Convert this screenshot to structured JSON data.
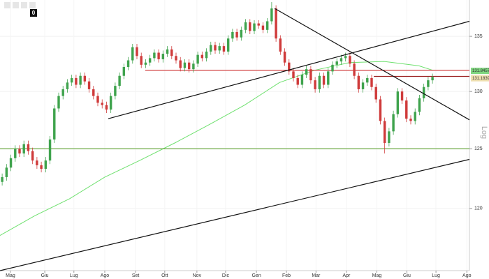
{
  "badge": "0",
  "chart_data": {
    "type": "candlestick",
    "open": [
      122.2,
      122.6,
      123.4,
      124.2,
      125.0,
      124.6,
      125.4,
      124.8,
      124.0,
      123.6,
      123.3,
      124.0,
      125.8,
      128.5,
      129.6,
      130.2,
      130.8,
      131.2,
      130.6,
      131.4,
      130.9,
      130.2,
      129.6,
      129.0,
      128.8,
      128.4,
      129.6,
      130.5,
      131.4,
      132.2,
      132.8,
      134.0,
      133.2,
      132.4,
      132.6,
      133.0,
      133.5,
      132.9,
      133.4,
      133.8,
      133.2,
      132.8,
      132.1,
      132.6,
      132.0,
      132.5,
      133.3,
      133.0,
      133.6,
      134.2,
      133.7,
      134.1,
      133.6,
      134.8,
      135.4,
      134.9,
      135.6,
      136.3,
      135.5,
      136.2,
      136.0,
      135.6,
      136.4,
      137.6,
      134.8,
      133.6,
      132.6,
      131.8,
      131.2,
      130.6,
      131.5,
      132.0,
      131.0,
      130.2,
      131.4,
      130.6,
      131.8,
      132.4,
      132.7,
      133.0,
      133.2,
      132.5,
      131.4,
      130.2,
      130.8,
      131.2,
      130.4,
      129.3,
      127.4,
      125.5,
      126.5,
      128.0,
      130.0,
      129.2,
      127.6,
      127.4,
      128.2,
      129.4,
      130.4,
      131.0
    ],
    "high": [
      122.9,
      123.7,
      124.5,
      125.3,
      125.3,
      125.7,
      125.7,
      125.1,
      124.3,
      123.9,
      124.3,
      126.1,
      128.8,
      129.9,
      130.5,
      131.1,
      131.5,
      131.5,
      131.7,
      131.7,
      131.2,
      130.5,
      129.9,
      129.3,
      129.1,
      129.9,
      130.8,
      131.7,
      132.5,
      133.1,
      134.3,
      134.3,
      133.5,
      132.9,
      133.3,
      133.8,
      133.8,
      133.7,
      134.1,
      134.1,
      133.5,
      133.1,
      132.9,
      132.9,
      132.8,
      133.6,
      133.6,
      133.9,
      134.5,
      134.5,
      134.4,
      134.4,
      135.1,
      135.7,
      135.7,
      135.9,
      136.6,
      136.6,
      136.5,
      136.5,
      136.3,
      136.7,
      138.2,
      137.9,
      135.1,
      133.9,
      132.9,
      132.1,
      131.5,
      131.8,
      132.3,
      132.3,
      131.3,
      131.7,
      131.7,
      132.1,
      132.7,
      133.0,
      133.3,
      133.5,
      133.5,
      132.8,
      131.7,
      131.1,
      131.5,
      131.5,
      130.7,
      129.6,
      127.7,
      126.8,
      128.3,
      130.3,
      130.3,
      129.5,
      127.9,
      128.5,
      129.7,
      130.7,
      131.3,
      131.6
    ],
    "low": [
      121.9,
      122.3,
      123.1,
      123.9,
      124.3,
      124.3,
      124.5,
      123.7,
      123.3,
      123.0,
      123.0,
      123.7,
      125.5,
      128.2,
      129.3,
      129.9,
      130.5,
      130.3,
      130.3,
      130.6,
      129.9,
      129.3,
      128.7,
      128.5,
      128.1,
      128.1,
      129.3,
      130.2,
      131.1,
      131.9,
      132.5,
      132.9,
      132.1,
      132.1,
      132.3,
      132.7,
      132.6,
      132.6,
      133.1,
      132.9,
      132.5,
      131.8,
      131.8,
      131.7,
      131.7,
      132.2,
      132.7,
      132.7,
      133.3,
      133.4,
      133.4,
      133.3,
      133.3,
      134.5,
      134.6,
      134.6,
      135.3,
      135.2,
      135.2,
      135.7,
      135.3,
      135.3,
      136.1,
      134.5,
      133.3,
      132.3,
      131.5,
      130.9,
      130.3,
      130.3,
      131.2,
      130.7,
      129.9,
      129.9,
      130.3,
      130.3,
      131.5,
      132.1,
      132.4,
      132.7,
      132.2,
      131.1,
      129.9,
      129.9,
      130.5,
      130.1,
      129.0,
      127.1,
      124.6,
      125.2,
      126.2,
      127.7,
      128.9,
      127.3,
      127.1,
      127.1,
      127.9,
      129.1,
      130.1,
      130.7
    ],
    "close": [
      122.6,
      123.4,
      124.2,
      125.0,
      124.6,
      125.4,
      124.8,
      124.0,
      123.6,
      123.3,
      124.0,
      125.8,
      128.5,
      129.6,
      130.2,
      130.8,
      131.2,
      130.6,
      131.4,
      130.9,
      130.2,
      129.6,
      129.0,
      128.8,
      128.4,
      129.6,
      130.5,
      131.4,
      132.2,
      132.8,
      134.0,
      133.2,
      132.4,
      132.6,
      133.0,
      133.5,
      132.9,
      133.4,
      133.8,
      133.2,
      132.8,
      132.1,
      132.6,
      132.0,
      132.5,
      133.3,
      133.0,
      133.6,
      134.2,
      133.7,
      134.1,
      133.6,
      134.8,
      135.4,
      134.9,
      135.6,
      136.3,
      135.5,
      136.2,
      136.0,
      135.6,
      136.4,
      137.6,
      134.8,
      133.6,
      132.6,
      131.8,
      131.2,
      130.6,
      131.5,
      132.0,
      131.0,
      130.2,
      131.4,
      130.6,
      131.8,
      132.4,
      132.7,
      133.0,
      133.2,
      132.5,
      131.4,
      130.2,
      130.8,
      131.2,
      130.4,
      129.3,
      127.4,
      125.5,
      126.5,
      128.0,
      130.0,
      129.2,
      127.6,
      127.4,
      128.2,
      129.4,
      130.4,
      131.0,
      131.3
    ],
    "up_color": "#3fa34d",
    "down_color": "#cf3a3a",
    "xlim": [
      0,
      108
    ],
    "xticks": [
      {
        "value": 2.4,
        "label": "Mag"
      },
      {
        "value": 10.3,
        "label": "Giu"
      },
      {
        "value": 17.0,
        "label": "Lug"
      },
      {
        "value": 24.1,
        "label": "Ago"
      },
      {
        "value": 31.2,
        "label": "Set"
      },
      {
        "value": 37.9,
        "label": "Ott"
      },
      {
        "value": 45.3,
        "label": "Nov"
      },
      {
        "value": 51.9,
        "label": "Dic"
      },
      {
        "value": 59.0,
        "label": "Gen"
      },
      {
        "value": 65.9,
        "label": "Feb"
      },
      {
        "value": 72.7,
        "label": "Mar"
      },
      {
        "value": 79.7,
        "label": "Apr"
      },
      {
        "value": 86.7,
        "label": "Mag"
      },
      {
        "value": 93.6,
        "label": "Giu"
      },
      {
        "value": 100.3,
        "label": "Lug"
      },
      {
        "value": 107.4,
        "label": "Ago"
      }
    ],
    "ylim": [
      115,
      138.4
    ],
    "yticks": [
      120,
      125,
      130,
      135
    ],
    "log_scale": true,
    "grid": true,
    "axis_label": "Log",
    "moving_average": {
      "color": "#6ee06e",
      "x": [
        0,
        8,
        16,
        24.1,
        32.1,
        40.2,
        48.2,
        56.3,
        64.3,
        72.3,
        80.4,
        88.4,
        96.4,
        99.6
      ],
      "values": [
        117.8,
        119.4,
        120.8,
        122.6,
        124.0,
        125.5,
        127.1,
        128.8,
        130.8,
        131.9,
        132.6,
        132.7,
        132.3,
        131.9
      ]
    },
    "trend_lines": [
      {
        "color": "#111111",
        "x": [
          0,
          108
        ],
        "y": [
          115.0,
          124.1
        ]
      },
      {
        "color": "#111111",
        "x": [
          24.9,
          108
        ],
        "y": [
          127.6,
          136.4
        ]
      },
      {
        "color": "#111111",
        "x": [
          63.2,
          108
        ],
        "y": [
          137.6,
          127.5
        ]
      }
    ],
    "horizontal_lines": [
      {
        "color": "#d04040",
        "value": 131.9,
        "from": 33.4
      },
      {
        "color": "#9a1f1f",
        "value": 131.35,
        "from": 86
      },
      {
        "color": "#5aa02c",
        "value": 125.0,
        "from": 0
      }
    ],
    "price_labels": [
      131.8457,
      131.1839
    ],
    "price_label_colors": [
      "#7fd67f",
      "#efe0b0"
    ]
  }
}
